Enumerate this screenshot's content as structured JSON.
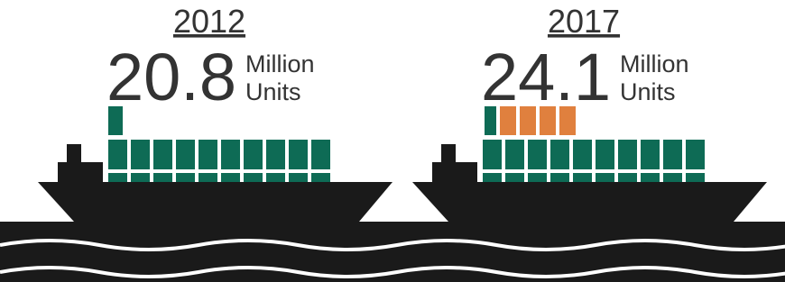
{
  "panels": [
    {
      "year": "2012",
      "value": "20.8",
      "unit_line1": "Million",
      "unit_line2": "Units"
    },
    {
      "year": "2017",
      "value": "24.1",
      "unit_line1": "Million",
      "unit_line2": "Units"
    }
  ]
}
